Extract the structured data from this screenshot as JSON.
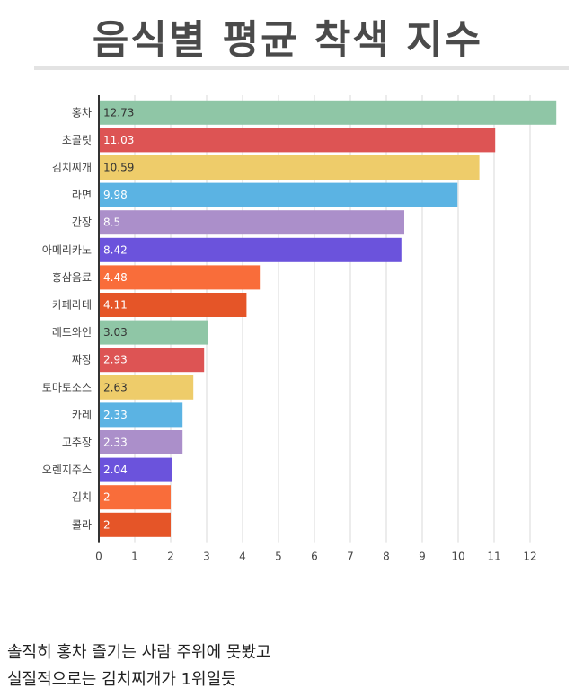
{
  "chart_data": {
    "type": "bar",
    "orientation": "horizontal",
    "title": "음식별 평균 착색 지수",
    "categories": [
      "홍차",
      "초콜릿",
      "김치찌개",
      "라면",
      "간장",
      "아메리카노",
      "홍삼음료",
      "카페라테",
      "레드와인",
      "짜장",
      "토마토소스",
      "카레",
      "고추장",
      "오렌지주스",
      "김치",
      "콜라"
    ],
    "values": [
      12.73,
      11.03,
      10.59,
      9.98,
      8.5,
      8.42,
      4.48,
      4.11,
      3.03,
      2.93,
      2.63,
      2.33,
      2.33,
      2.04,
      2,
      2
    ],
    "value_labels": [
      "12.73",
      "11.03",
      "10.59",
      "9.98",
      "8.5",
      "8.42",
      "4.48",
      "4.11",
      "3.03",
      "2.93",
      "2.63",
      "2.33",
      "2.33",
      "2.04",
      "2",
      "2"
    ],
    "colors": [
      "#8fc6a6",
      "#dd5454",
      "#eecc6a",
      "#5bb3e3",
      "#ab8fca",
      "#6b53dc",
      "#f96d3a",
      "#e55528",
      "#8fc6a6",
      "#dd5454",
      "#eecc6a",
      "#5bb3e3",
      "#ab8fca",
      "#6b53dc",
      "#f96d3a",
      "#e55528"
    ],
    "xticks": [
      0,
      1,
      2,
      3,
      4,
      5,
      6,
      7,
      8,
      9,
      10,
      11,
      12
    ],
    "xlim": [
      0,
      12.8
    ],
    "grid": true,
    "xlabel": "",
    "ylabel": ""
  },
  "caption": {
    "line1": "솔직히 홍차 즐기는 사람 주위에 못봤고",
    "line2": "실질적으로는 김치찌개가 1위일듯"
  }
}
